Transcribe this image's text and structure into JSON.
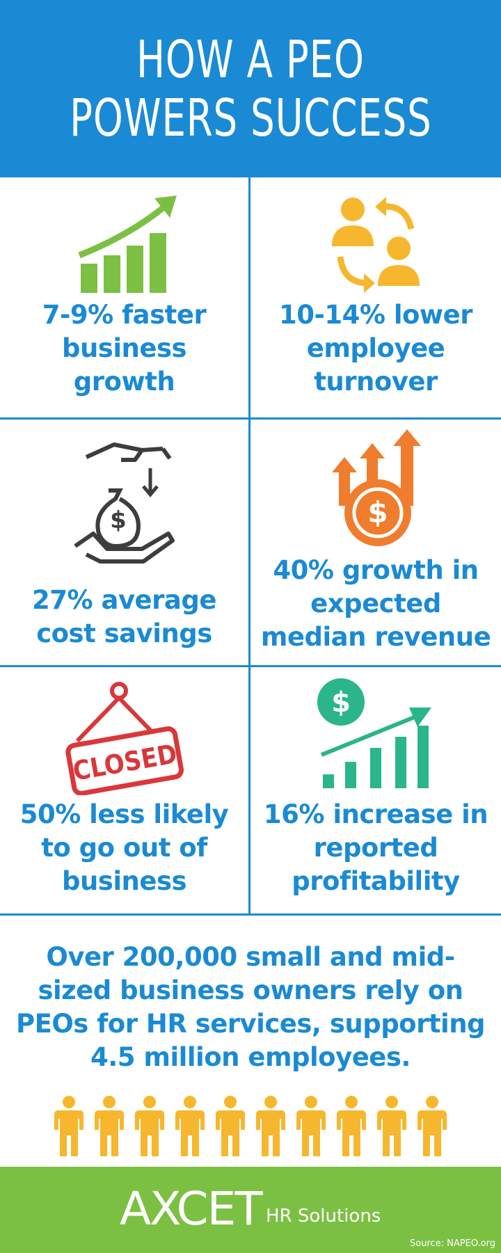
{
  "header": {
    "title_lines": [
      "HOW A PEO",
      "POWERS SUCCESS"
    ]
  },
  "stats": [
    {
      "lines": [
        "7-9% faster",
        "business",
        "growth"
      ]
    },
    {
      "lines": [
        "10-14% lower",
        "employee",
        "turnover"
      ]
    },
    {
      "icon_text": "$",
      "lines": [
        "27% average",
        "cost savings"
      ]
    },
    {
      "icon_text": "$",
      "lines": [
        "40% growth in",
        "expected",
        "median revenue"
      ]
    },
    {
      "icon_text": "CLOSED",
      "lines": [
        "50% less likely",
        "to go out of",
        "business"
      ]
    },
    {
      "icon_text": "$",
      "lines": [
        "16% increase in",
        "reported",
        "profitability"
      ]
    }
  ],
  "summary": {
    "lines": [
      "Over 200,000 small and mid-",
      "sized business owners rely on",
      "PEOs for HR services, supporting",
      "4.5 million employees."
    ]
  },
  "footer": {
    "logo": "AXCET",
    "tagline": "HR Solutions",
    "source": "Source: NAPEO.org"
  }
}
